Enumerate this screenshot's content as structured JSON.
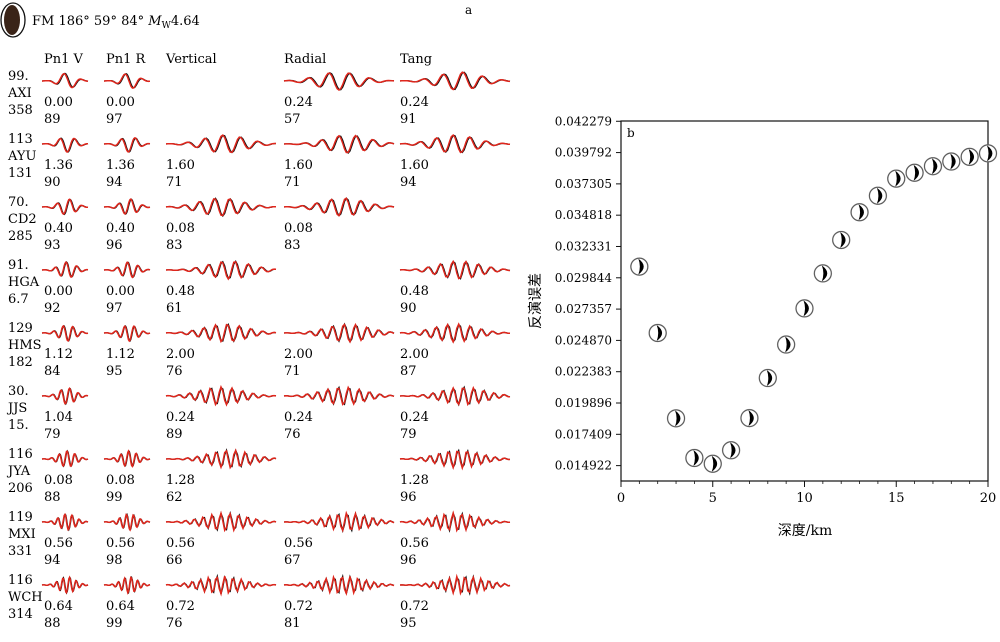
{
  "panel_a": {
    "label": "a",
    "mechanism_text": "FM 186° 59° 84° ",
    "magnitude_symbol": "M",
    "magnitude_subscript": "W",
    "magnitude_value": "4.64",
    "columns": [
      "Pn1 V",
      "Pn1 R",
      "Vertical",
      "Radial",
      "Tang"
    ],
    "stations": [
      {
        "dist": "99.",
        "name": "AXI",
        "az": "358",
        "waves": [
          {
            "shift": "0.00",
            "cc": "89",
            "style": "pn"
          },
          {
            "shift": "0.00",
            "cc": "97",
            "style": "pn"
          },
          null,
          {
            "shift": "0.24",
            "cc": "57",
            "style": "long"
          },
          {
            "shift": "0.24",
            "cc": "91",
            "style": "long"
          }
        ]
      },
      {
        "dist": "113",
        "name": "AYU",
        "az": "131",
        "waves": [
          {
            "shift": "1.36",
            "cc": "90",
            "style": "pn"
          },
          {
            "shift": "1.36",
            "cc": "94",
            "style": "pn"
          },
          {
            "shift": "1.60",
            "cc": "71",
            "style": "long"
          },
          {
            "shift": "1.60",
            "cc": "71",
            "style": "long"
          },
          {
            "shift": "1.60",
            "cc": "94",
            "style": "long"
          }
        ]
      },
      {
        "dist": "70.",
        "name": "CD2",
        "az": "285",
        "waves": [
          {
            "shift": "0.40",
            "cc": "93",
            "style": "pn"
          },
          {
            "shift": "0.40",
            "cc": "96",
            "style": "pn"
          },
          {
            "shift": "0.08",
            "cc": "83",
            "style": "long"
          },
          {
            "shift": "0.08",
            "cc": "83",
            "style": "long"
          },
          null
        ]
      },
      {
        "dist": "91.",
        "name": "HGA",
        "az": "6.7",
        "waves": [
          {
            "shift": "0.00",
            "cc": "92",
            "style": "pn"
          },
          {
            "shift": "0.00",
            "cc": "97",
            "style": "pn"
          },
          {
            "shift": "0.48",
            "cc": "61",
            "style": "long"
          },
          null,
          {
            "shift": "0.48",
            "cc": "90",
            "style": "long"
          }
        ]
      },
      {
        "dist": "129",
        "name": "HMS",
        "az": "182",
        "waves": [
          {
            "shift": "1.12",
            "cc": "84",
            "style": "pn"
          },
          {
            "shift": "1.12",
            "cc": "95",
            "style": "pn"
          },
          {
            "shift": "2.00",
            "cc": "76",
            "style": "long"
          },
          {
            "shift": "2.00",
            "cc": "71",
            "style": "long"
          },
          {
            "shift": "2.00",
            "cc": "87",
            "style": "long"
          }
        ]
      },
      {
        "dist": "30.",
        "name": "JJS",
        "az": "15.",
        "waves": [
          {
            "shift": "1.04",
            "cc": "79",
            "style": "pn"
          },
          null,
          {
            "shift": "0.24",
            "cc": "89",
            "style": "long"
          },
          {
            "shift": "0.24",
            "cc": "76",
            "style": "long"
          },
          {
            "shift": "0.24",
            "cc": "79",
            "style": "long"
          }
        ]
      },
      {
        "dist": "116",
        "name": "JYA",
        "az": "206",
        "waves": [
          {
            "shift": "0.08",
            "cc": "88",
            "style": "pn"
          },
          {
            "shift": "0.08",
            "cc": "99",
            "style": "pn"
          },
          {
            "shift": "1.28",
            "cc": "62",
            "style": "long"
          },
          null,
          {
            "shift": "1.28",
            "cc": "96",
            "style": "long"
          }
        ]
      },
      {
        "dist": "119",
        "name": "MXI",
        "az": "331",
        "waves": [
          {
            "shift": "0.56",
            "cc": "94",
            "style": "pn"
          },
          {
            "shift": "0.56",
            "cc": "98",
            "style": "pn"
          },
          {
            "shift": "0.56",
            "cc": "66",
            "style": "long"
          },
          {
            "shift": "0.56",
            "cc": "67",
            "style": "long"
          },
          {
            "shift": "0.56",
            "cc": "96",
            "style": "long"
          }
        ]
      },
      {
        "dist": "116",
        "name": "WCH",
        "az": "314",
        "waves": [
          {
            "shift": "0.64",
            "cc": "88",
            "style": "pn"
          },
          {
            "shift": "0.64",
            "cc": "99",
            "style": "pn"
          },
          {
            "shift": "0.72",
            "cc": "76",
            "style": "long"
          },
          {
            "shift": "0.72",
            "cc": "81",
            "style": "long"
          },
          {
            "shift": "0.72",
            "cc": "95",
            "style": "long"
          }
        ]
      }
    ],
    "colors": {
      "observed": "#111111",
      "synthetic": "#e0261c"
    }
  },
  "chart_data": {
    "type": "scatter",
    "label": "b",
    "xlabel": "深度/km",
    "ylabel": "反演误差",
    "xlim": [
      0,
      20
    ],
    "ylim": [
      0.0137,
      0.0423
    ],
    "xticks": [
      "0",
      "5",
      "10",
      "15",
      "20"
    ],
    "yticks": [
      "0.014922",
      "0.017409",
      "0.019896",
      "0.022383",
      "0.024870",
      "0.027357",
      "0.029844",
      "0.032331",
      "0.034818",
      "0.037305",
      "0.039792",
      "0.042279"
    ],
    "marker": "focal-mechanism beachball",
    "points": [
      {
        "x": 1,
        "y": 0.03073
      },
      {
        "x": 2,
        "y": 0.02546
      },
      {
        "x": 3,
        "y": 0.01868
      },
      {
        "x": 4,
        "y": 0.01553
      },
      {
        "x": 5,
        "y": 0.01507
      },
      {
        "x": 6,
        "y": 0.01614
      },
      {
        "x": 7,
        "y": 0.0187
      },
      {
        "x": 8,
        "y": 0.02188
      },
      {
        "x": 9,
        "y": 0.02454
      },
      {
        "x": 10,
        "y": 0.02741
      },
      {
        "x": 11,
        "y": 0.03019
      },
      {
        "x": 12,
        "y": 0.03285
      },
      {
        "x": 13,
        "y": 0.03505
      },
      {
        "x": 14,
        "y": 0.03636
      },
      {
        "x": 15,
        "y": 0.03772
      },
      {
        "x": 16,
        "y": 0.03819
      },
      {
        "x": 17,
        "y": 0.03871
      },
      {
        "x": 18,
        "y": 0.03908
      },
      {
        "x": 19,
        "y": 0.03945
      },
      {
        "x": 20,
        "y": 0.03973
      }
    ]
  }
}
